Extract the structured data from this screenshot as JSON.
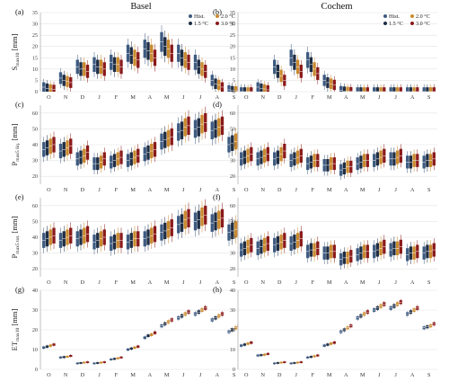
{
  "figure": {
    "col_titles": [
      "Basel",
      "Cochem"
    ],
    "months": [
      "O",
      "N",
      "D",
      "J",
      "F",
      "M",
      "A",
      "M",
      "J",
      "J",
      "A",
      "S"
    ],
    "panel_labels": [
      "(a)",
      "(b)",
      "(c)",
      "(d)",
      "(e)",
      "(f)",
      "(g)",
      "(h)"
    ],
    "row_labels": [
      {
        "main": "S",
        "sub": "max10",
        "unit": " [mm]"
      },
      {
        "main": "P",
        "sub": "max5 liq.",
        "unit": " [mm]"
      },
      {
        "main": "P",
        "sub": "max5 tot.",
        "unit": " [mm]"
      },
      {
        "main": "ET",
        "sub": "max10",
        "unit": " [mm]"
      }
    ],
    "legend": [
      "Hist.",
      "2.0 °C",
      "1.5 °C",
      "3.0 °C"
    ],
    "colors": {
      "Hist.": "#3d5a80",
      "1.5 °C": "#1f2d44",
      "2.0 °C": "#c98a2e",
      "3.0 °C": "#8b1a1a"
    }
  },
  "chart_data": [
    {
      "type": "box",
      "panel": "(a)",
      "station": "Basel",
      "ylabel": "Smax10 [mm]",
      "ylim": [
        0,
        35
      ],
      "yticks": [
        0,
        5,
        10,
        15,
        20,
        25,
        30,
        35
      ],
      "categories": [
        "O",
        "N",
        "D",
        "J",
        "F",
        "M",
        "A",
        "M",
        "J",
        "J",
        "A",
        "S"
      ],
      "series": [
        {
          "name": "Hist.",
          "medians": [
            2,
            6,
            11,
            12,
            13,
            17,
            19,
            22,
            17,
            13,
            5,
            0.8
          ]
        },
        {
          "name": "1.5 °C",
          "medians": [
            1.5,
            5,
            10,
            11,
            12,
            16,
            18,
            20,
            15,
            11,
            3.5,
            0.5
          ]
        },
        {
          "name": "2.0 °C",
          "medians": [
            1.2,
            4.5,
            10,
            11,
            12,
            15,
            17,
            19,
            14,
            10,
            3,
            0.4
          ]
        },
        {
          "name": "3.0 °C",
          "medians": [
            1,
            4,
            9,
            10,
            11,
            14,
            15,
            17,
            13,
            9,
            2,
            0.3
          ]
        }
      ]
    },
    {
      "type": "box",
      "panel": "(b)",
      "station": "Cochem",
      "ylabel": "Smax10 [mm]",
      "ylim": [
        0,
        35
      ],
      "yticks": [
        0,
        5,
        10,
        15,
        20,
        25,
        30,
        35
      ],
      "categories": [
        "O",
        "N",
        "D",
        "J",
        "F",
        "M",
        "A",
        "M",
        "J",
        "J",
        "A",
        "S"
      ],
      "series": [
        {
          "name": "Hist.",
          "medians": [
            0,
            2,
            11,
            15,
            14,
            5,
            0.5,
            0,
            0,
            0,
            0,
            0
          ]
        },
        {
          "name": "1.5 °C",
          "medians": [
            0,
            1.5,
            9,
            13,
            12,
            4,
            0.3,
            0,
            0,
            0,
            0,
            0
          ]
        },
        {
          "name": "2.0 °C",
          "medians": [
            0,
            1.2,
            7,
            11,
            10,
            3.5,
            0.2,
            0,
            0,
            0,
            0,
            0
          ]
        },
        {
          "name": "3.0 °C",
          "medians": [
            0,
            0.8,
            5,
            9,
            8,
            3,
            0.1,
            0,
            0,
            0,
            0,
            0
          ]
        }
      ]
    },
    {
      "type": "box",
      "panel": "(c)",
      "station": "Basel",
      "ylabel": "Pmax5 liq. [mm]",
      "ylim": [
        15,
        65
      ],
      "yticks": [
        20,
        30,
        40,
        50,
        60
      ],
      "categories": [
        "O",
        "N",
        "D",
        "J",
        "F",
        "M",
        "A",
        "M",
        "J",
        "J",
        "A",
        "S"
      ],
      "series": [
        {
          "name": "Hist.",
          "medians": [
            37,
            36,
            31,
            28,
            29,
            30,
            34,
            42,
            48,
            50,
            49,
            40
          ]
        },
        {
          "name": "1.5 °C",
          "medians": [
            38,
            37,
            32,
            28,
            30,
            31,
            35,
            43,
            49,
            51,
            50,
            41
          ]
        },
        {
          "name": "2.0 °C",
          "medians": [
            39,
            38,
            33,
            29,
            31,
            32,
            36,
            44,
            51,
            53,
            51,
            42
          ]
        },
        {
          "name": "3.0 °C",
          "medians": [
            40,
            39,
            35,
            31,
            32,
            33,
            37,
            45,
            52,
            54,
            52,
            43
          ]
        }
      ]
    },
    {
      "type": "box",
      "panel": "(d)",
      "station": "Cochem",
      "ylabel": "Pmax5 liq. [mm]",
      "ylim": [
        15,
        65
      ],
      "yticks": [
        20,
        30,
        40,
        50,
        60
      ],
      "categories": [
        "O",
        "N",
        "D",
        "J",
        "F",
        "M",
        "A",
        "M",
        "J",
        "J",
        "A",
        "S"
      ],
      "series": [
        {
          "name": "Hist.",
          "medians": [
            31,
            31,
            31,
            30,
            28,
            27,
            24,
            28,
            30,
            31,
            29,
            29
          ]
        },
        {
          "name": "1.5 °C",
          "medians": [
            32,
            32,
            32,
            31,
            29,
            27,
            25,
            29,
            31,
            31,
            29,
            30
          ]
        },
        {
          "name": "2.0 °C",
          "medians": [
            33,
            33,
            34,
            32,
            30,
            28,
            26,
            30,
            32,
            32,
            30,
            30
          ]
        },
        {
          "name": "3.0 °C",
          "medians": [
            34,
            34,
            36,
            33,
            30,
            28,
            26,
            30,
            33,
            33,
            30,
            31
          ]
        }
      ]
    },
    {
      "type": "box",
      "panel": "(e)",
      "station": "Basel",
      "ylabel": "Pmax5 tot. [mm]",
      "ylim": [
        15,
        65
      ],
      "yticks": [
        20,
        30,
        40,
        50,
        60
      ],
      "categories": [
        "O",
        "N",
        "D",
        "J",
        "F",
        "M",
        "A",
        "M",
        "J",
        "J",
        "A",
        "S"
      ],
      "series": [
        {
          "name": "Hist.",
          "medians": [
            38,
            38,
            39,
            37,
            36,
            37,
            39,
            43,
            48,
            50,
            49,
            43
          ]
        },
        {
          "name": "1.5 °C",
          "medians": [
            39,
            39,
            40,
            38,
            37,
            38,
            40,
            44,
            49,
            51,
            50,
            44
          ]
        },
        {
          "name": "2.0 °C",
          "medians": [
            40,
            40,
            41,
            39,
            38,
            39,
            41,
            45,
            51,
            53,
            51,
            45
          ]
        },
        {
          "name": "3.0 °C",
          "medians": [
            41,
            41,
            42,
            40,
            38,
            39,
            42,
            46,
            52,
            54,
            52,
            46
          ]
        }
      ]
    },
    {
      "type": "box",
      "panel": "(f)",
      "station": "Cochem",
      "ylabel": "Pmax5 tot. [mm]",
      "ylim": [
        15,
        65
      ],
      "yticks": [
        20,
        30,
        40,
        50,
        60
      ],
      "categories": [
        "O",
        "N",
        "D",
        "J",
        "F",
        "M",
        "A",
        "M",
        "J",
        "J",
        "A",
        "S"
      ],
      "series": [
        {
          "name": "Hist.",
          "medians": [
            32,
            33,
            35,
            36,
            31,
            30,
            26,
            29,
            31,
            32,
            29,
            30
          ]
        },
        {
          "name": "1.5 °C",
          "medians": [
            33,
            34,
            36,
            37,
            32,
            30,
            27,
            30,
            32,
            33,
            30,
            31
          ]
        },
        {
          "name": "2.0 °C",
          "medians": [
            34,
            35,
            37,
            38,
            32,
            31,
            27,
            31,
            33,
            33,
            30,
            31
          ]
        },
        {
          "name": "3.0 °C",
          "medians": [
            35,
            36,
            38,
            39,
            33,
            31,
            28,
            31,
            34,
            34,
            31,
            32
          ]
        }
      ]
    },
    {
      "type": "box",
      "panel": "(g)",
      "station": "Basel",
      "ylabel": "ETmax10 [mm]",
      "ylim": [
        0,
        40
      ],
      "yticks": [
        0,
        10,
        20,
        30,
        40
      ],
      "categories": [
        "O",
        "N",
        "D",
        "J",
        "F",
        "M",
        "A",
        "M",
        "J",
        "J",
        "A",
        "S"
      ],
      "series": [
        {
          "name": "Hist.",
          "medians": [
            11,
            6,
            3,
            3,
            5,
            10,
            16,
            22,
            26,
            28,
            25,
            19
          ]
        },
        {
          "name": "1.5 °C",
          "medians": [
            11.5,
            6.2,
            3.2,
            3.2,
            5.3,
            10.5,
            17,
            23,
            27,
            29,
            26,
            20
          ]
        },
        {
          "name": "2.0 °C",
          "medians": [
            12,
            6.4,
            3.4,
            3.4,
            5.6,
            11,
            17.5,
            24,
            28,
            30,
            27,
            21
          ]
        },
        {
          "name": "3.0 °C",
          "medians": [
            12.5,
            6.8,
            3.6,
            3.6,
            6,
            11.5,
            18.5,
            25,
            29,
            31,
            28,
            22
          ]
        }
      ]
    },
    {
      "type": "box",
      "panel": "(h)",
      "station": "Cochem",
      "ylabel": "ETmax10 [mm]",
      "ylim": [
        0,
        40
      ],
      "yticks": [
        0,
        10,
        20,
        30,
        40
      ],
      "categories": [
        "O",
        "N",
        "D",
        "J",
        "F",
        "M",
        "A",
        "M",
        "J",
        "J",
        "A",
        "S"
      ],
      "series": [
        {
          "name": "Hist.",
          "medians": [
            12,
            7,
            3,
            3,
            6,
            12,
            19,
            26,
            30,
            31,
            28,
            21
          ]
        },
        {
          "name": "1.5 °C",
          "medians": [
            12.5,
            7.2,
            3.2,
            3.2,
            6.3,
            12.5,
            20,
            27,
            31,
            32,
            29,
            21.5
          ]
        },
        {
          "name": "2.0 °C",
          "medians": [
            13,
            7.4,
            3.4,
            3.4,
            6.6,
            13,
            21,
            28,
            32,
            33,
            30,
            22
          ]
        },
        {
          "name": "3.0 °C",
          "medians": [
            13.5,
            7.8,
            3.6,
            3.6,
            7,
            13.5,
            22,
            29,
            33,
            34,
            31,
            23
          ]
        }
      ]
    }
  ]
}
